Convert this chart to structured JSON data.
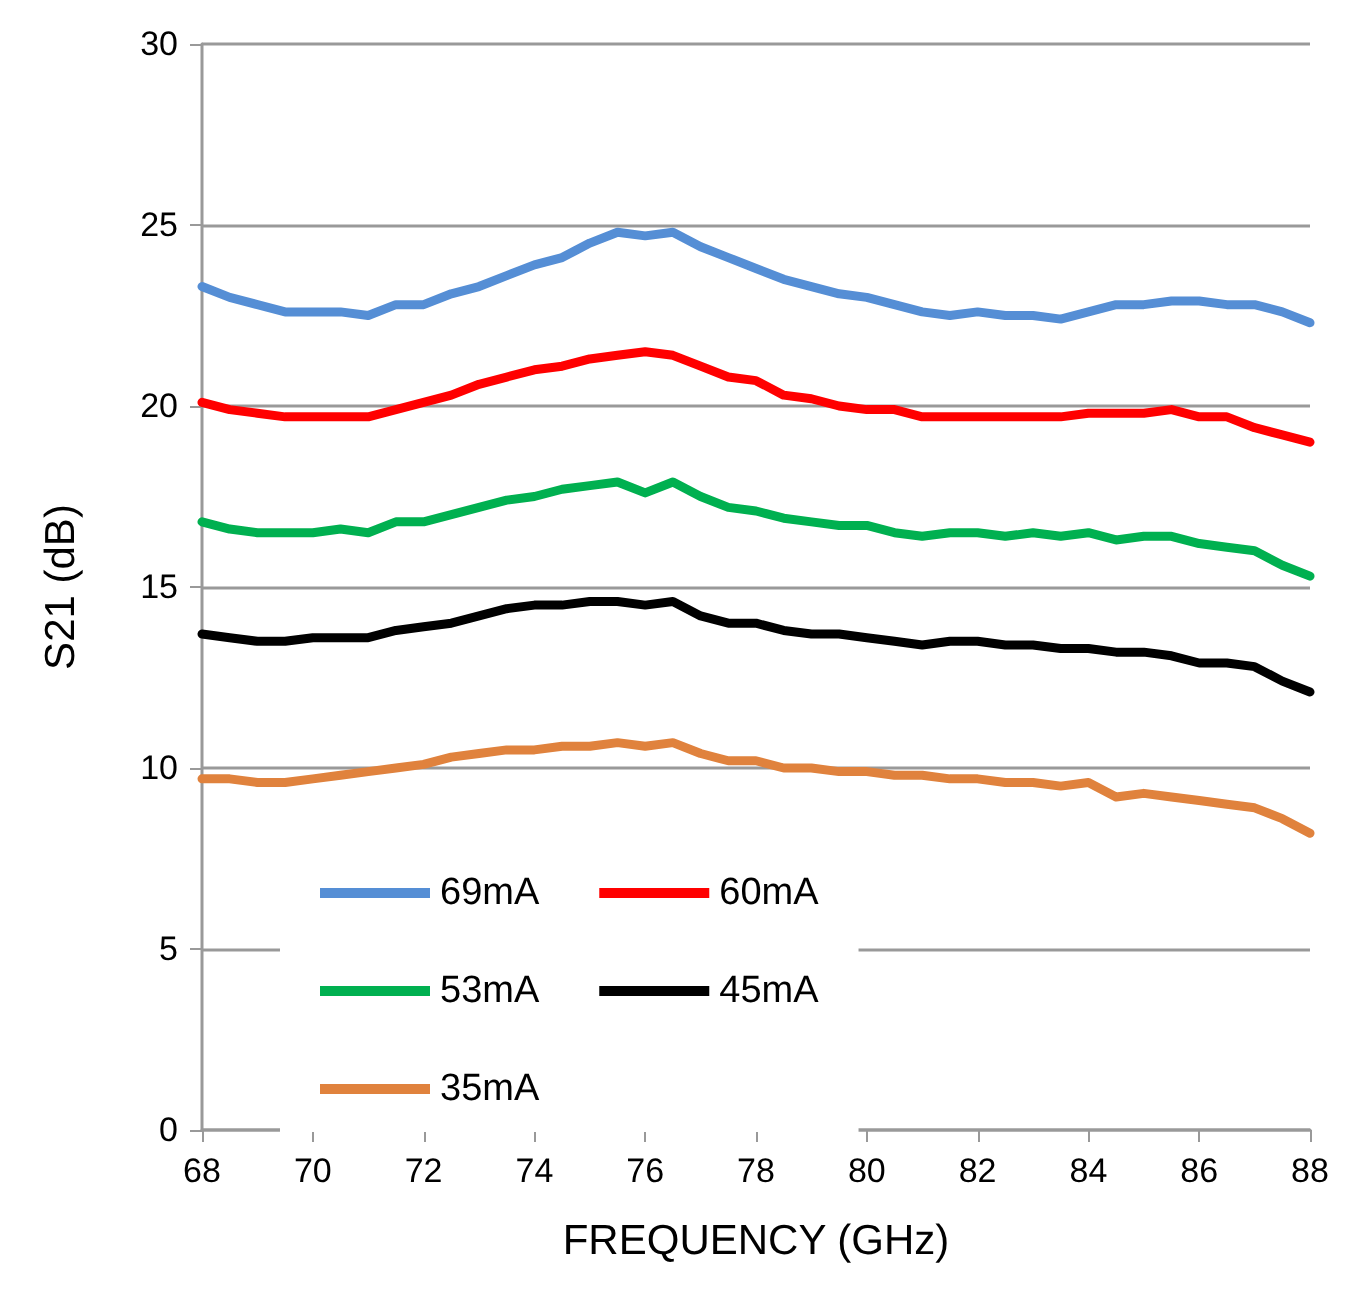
{
  "chart_data": {
    "type": "line",
    "xlabel": "FREQUENCY (GHz)",
    "ylabel": "S21 (dB)",
    "x": [
      68,
      68.5,
      69,
      69.5,
      70,
      70.5,
      71,
      71.5,
      72,
      72.5,
      73,
      73.5,
      74,
      74.5,
      75,
      75.5,
      76,
      76.5,
      77,
      77.5,
      78,
      78.5,
      79,
      79.5,
      80,
      80.5,
      81,
      81.5,
      82,
      82.5,
      83,
      83.5,
      84,
      84.5,
      85,
      85.5,
      86,
      86.5,
      87,
      87.5,
      88
    ],
    "series": [
      {
        "name": "69mA",
        "color": "#558ed5",
        "values": [
          23.3,
          23.0,
          22.8,
          22.6,
          22.6,
          22.6,
          22.5,
          22.8,
          22.8,
          23.1,
          23.3,
          23.6,
          23.9,
          24.1,
          24.5,
          24.8,
          24.7,
          24.8,
          24.4,
          24.1,
          23.8,
          23.5,
          23.3,
          23.1,
          23.0,
          22.8,
          22.6,
          22.5,
          22.6,
          22.5,
          22.5,
          22.4,
          22.6,
          22.8,
          22.8,
          22.9,
          22.9,
          22.8,
          22.8,
          22.6,
          22.3
        ]
      },
      {
        "name": "60mA",
        "color": "#ff0000",
        "values": [
          20.1,
          19.9,
          19.8,
          19.7,
          19.7,
          19.7,
          19.7,
          19.9,
          20.1,
          20.3,
          20.6,
          20.8,
          21.0,
          21.1,
          21.3,
          21.4,
          21.5,
          21.4,
          21.1,
          20.8,
          20.7,
          20.3,
          20.2,
          20.0,
          19.9,
          19.9,
          19.7,
          19.7,
          19.7,
          19.7,
          19.7,
          19.7,
          19.8,
          19.8,
          19.8,
          19.9,
          19.7,
          19.7,
          19.4,
          19.2,
          19.0
        ]
      },
      {
        "name": "53mA",
        "color": "#00b050",
        "values": [
          16.8,
          16.6,
          16.5,
          16.5,
          16.5,
          16.6,
          16.5,
          16.8,
          16.8,
          17.0,
          17.2,
          17.4,
          17.5,
          17.7,
          17.8,
          17.9,
          17.6,
          17.9,
          17.5,
          17.2,
          17.1,
          16.9,
          16.8,
          16.7,
          16.7,
          16.5,
          16.4,
          16.5,
          16.5,
          16.4,
          16.5,
          16.4,
          16.5,
          16.3,
          16.4,
          16.4,
          16.2,
          16.1,
          16.0,
          15.6,
          15.3
        ]
      },
      {
        "name": "45mA",
        "color": "#000000",
        "values": [
          13.7,
          13.6,
          13.5,
          13.5,
          13.6,
          13.6,
          13.6,
          13.8,
          13.9,
          14.0,
          14.2,
          14.4,
          14.5,
          14.5,
          14.6,
          14.6,
          14.5,
          14.6,
          14.2,
          14.0,
          14.0,
          13.8,
          13.7,
          13.7,
          13.6,
          13.5,
          13.4,
          13.5,
          13.5,
          13.4,
          13.4,
          13.3,
          13.3,
          13.2,
          13.2,
          13.1,
          12.9,
          12.9,
          12.8,
          12.4,
          12.1
        ]
      },
      {
        "name": "35mA",
        "color": "#e0823d",
        "values": [
          9.7,
          9.7,
          9.6,
          9.6,
          9.7,
          9.8,
          9.9,
          10.0,
          10.1,
          10.3,
          10.4,
          10.5,
          10.5,
          10.6,
          10.6,
          10.7,
          10.6,
          10.7,
          10.4,
          10.2,
          10.2,
          10.0,
          10.0,
          9.9,
          9.9,
          9.8,
          9.8,
          9.7,
          9.7,
          9.6,
          9.6,
          9.5,
          9.6,
          9.2,
          9.3,
          9.2,
          9.1,
          9.0,
          8.9,
          8.6,
          8.2
        ]
      }
    ],
    "xlim": [
      68,
      88
    ],
    "xticks": [
      68,
      70,
      72,
      74,
      76,
      78,
      80,
      82,
      84,
      86,
      88
    ],
    "ylim": [
      0,
      30
    ],
    "yticks": [
      0,
      5,
      10,
      15,
      20,
      25,
      30
    ],
    "grid": "y",
    "legend": "bottom left",
    "marker": "none",
    "line_style": "solid"
  }
}
